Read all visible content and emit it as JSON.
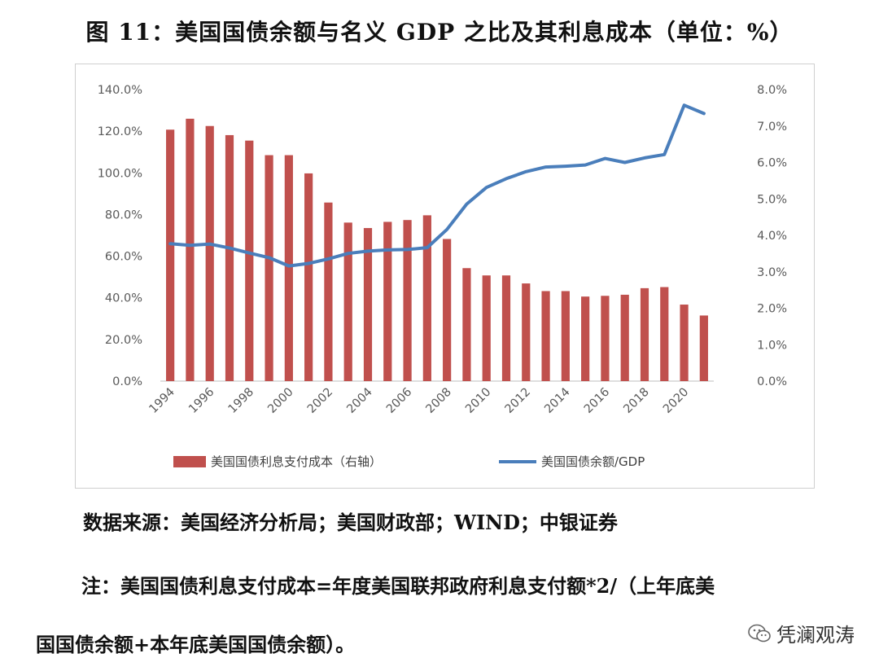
{
  "title": "图 11：美国国债余额与名义 GDP 之比及其利息成本（单位：%）",
  "chart_data": {
    "type": "bar+line",
    "categories": [
      "1994",
      "1995",
      "1996",
      "1997",
      "1998",
      "1999",
      "2000",
      "2001",
      "2002",
      "2003",
      "2004",
      "2005",
      "2006",
      "2007",
      "2008",
      "2009",
      "2010",
      "2011",
      "2012",
      "2013",
      "2014",
      "2015",
      "2016",
      "2017",
      "2018",
      "2019",
      "2020",
      "2021"
    ],
    "x_tick_labels": [
      "1994",
      "1996",
      "1998",
      "2000",
      "2002",
      "2004",
      "2006",
      "2008",
      "2010",
      "2012",
      "2014",
      "2016",
      "2018",
      "2020"
    ],
    "series": [
      {
        "name": "美国国债利息支付成本（右轴）",
        "type": "bar",
        "axis": "right",
        "color": "#c0504d",
        "values": [
          6.9,
          7.2,
          7.0,
          6.75,
          6.6,
          6.2,
          6.2,
          5.7,
          4.9,
          4.35,
          4.2,
          4.37,
          4.42,
          4.55,
          3.9,
          3.1,
          2.9,
          2.9,
          2.68,
          2.47,
          2.47,
          2.32,
          2.34,
          2.37,
          2.55,
          2.58,
          2.1,
          1.8
        ]
      },
      {
        "name": "美国国债余额/GDP",
        "type": "line",
        "axis": "left",
        "color": "#4a7ebb",
        "values": [
          66.0,
          65.2,
          65.8,
          63.9,
          61.5,
          59.3,
          55.3,
          56.5,
          58.7,
          61.3,
          62.4,
          63.0,
          63.2,
          64.1,
          72.8,
          85.0,
          93.0,
          97.2,
          100.6,
          102.8,
          103.2,
          103.8,
          106.9,
          105.0,
          107.2,
          108.8,
          132.5,
          128.5
        ]
      }
    ],
    "left_axis": {
      "ylim": [
        0,
        140
      ],
      "ticks": [
        "0.0%",
        "20.0%",
        "40.0%",
        "60.0%",
        "80.0%",
        "100.0%",
        "120.0%",
        "140.0%"
      ]
    },
    "right_axis": {
      "ylim": [
        0,
        8
      ],
      "ticks": [
        "0.0%",
        "1.0%",
        "2.0%",
        "3.0%",
        "4.0%",
        "5.0%",
        "6.0%",
        "7.0%",
        "8.0%"
      ]
    },
    "legend_position": "bottom",
    "grid": false
  },
  "source": "数据来源：美国经济分析局；美国财政部；WIND；中银证券",
  "note_line1": "注：美国国债利息支付成本=年度美国联邦政府利息支付额*2/（上年底美",
  "note_line2": "国国债余额+本年底美国国债余额）。",
  "watermark": "凭澜观涛"
}
